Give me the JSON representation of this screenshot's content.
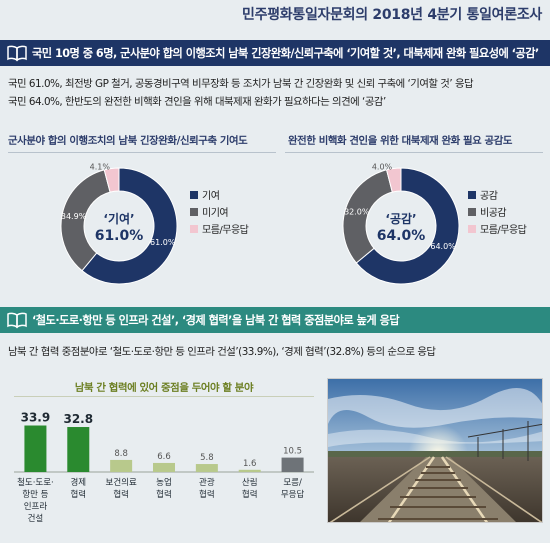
{
  "page": {
    "title": "민주평화통일자문회의 2018년 4분기 통일여론조사"
  },
  "section1": {
    "banner": "국민 10명 중 6명, 군사분야 합의 이행조치 남북 긴장완화/신뢰구축에 ‘기여할 것’, 대북제재 완화 필요성에 ‘공감’",
    "summary_line1": "국민 61.0%, 최전방 GP 철거, 공동경비구역 비무장화 등 조치가 남북 간 긴장완화 및 신뢰 구축에 ‘기여할 것’ 응답",
    "summary_line2": "국민 64.0%, 한반도의 완전한 비핵화 견인을 위해 대북제재 완화가 필요하다는 의견에 ‘공감’"
  },
  "section2": {
    "banner": "‘철도·도로·항만 등 인프라 건설’, ‘경제 협력’을 남북 간 협력 중점분야로 높게 응답",
    "summary": "남북 간 협력 중점분야로 ‘철도·도로·항만 등 인프라 건설’(33.9%), ‘경제 협력’(32.8%) 등의 순으로 응답"
  },
  "colors": {
    "navy": "#1e3566",
    "gray": "#5f6064",
    "pink": "#f2c6d0",
    "green_dark": "#2a8a2f",
    "green_light": "#b8c98c",
    "gray_bar": "#6e7378",
    "teal": "#2c8a80"
  },
  "chart_data": [
    {
      "type": "pie",
      "title": "군사분야 합의 이행조치의 남북 긴장완화/신뢰구축 기여도",
      "center_label": "‘기여’",
      "center_value": "61.0%",
      "slices": [
        {
          "name": "기여",
          "value": 61.0,
          "label": "61.0%"
        },
        {
          "name": "미기여",
          "value": 34.9,
          "label": "34.9%"
        },
        {
          "name": "모름/무응답",
          "value": 4.1,
          "label": "4.1%"
        }
      ],
      "legend_position": "right"
    },
    {
      "type": "pie",
      "title": "완전한 비핵화 견인을 위한 대북제재 완화 필요 공감도",
      "center_label": "‘공감’",
      "center_value": "64.0%",
      "slices": [
        {
          "name": "공감",
          "value": 64.0,
          "label": "64.0%"
        },
        {
          "name": "비공감",
          "value": 32.0,
          "label": "32.0%"
        },
        {
          "name": "모름/무응답",
          "value": 4.0,
          "label": "4.0%"
        }
      ],
      "legend_position": "right"
    },
    {
      "type": "bar",
      "title": "남북 간 협력에 있어 중점을 두어야 할 분야",
      "categories": [
        [
          "철도·도로·",
          "항만 등",
          "인프라",
          "건설"
        ],
        [
          "경제",
          "협력"
        ],
        [
          "보건의료",
          "협력"
        ],
        [
          "농업",
          "협력"
        ],
        [
          "관광",
          "협력"
        ],
        [
          "산림",
          "협력"
        ],
        [
          "모름/",
          "무응답"
        ]
      ],
      "values": [
        33.9,
        32.8,
        8.8,
        6.6,
        5.8,
        1.6,
        10.5
      ],
      "value_labels": [
        "33.9",
        "32.8",
        "8.8",
        "6.6",
        "5.8",
        "1.6",
        "10.5"
      ],
      "ylim": [
        0,
        35
      ],
      "grid": false
    }
  ]
}
